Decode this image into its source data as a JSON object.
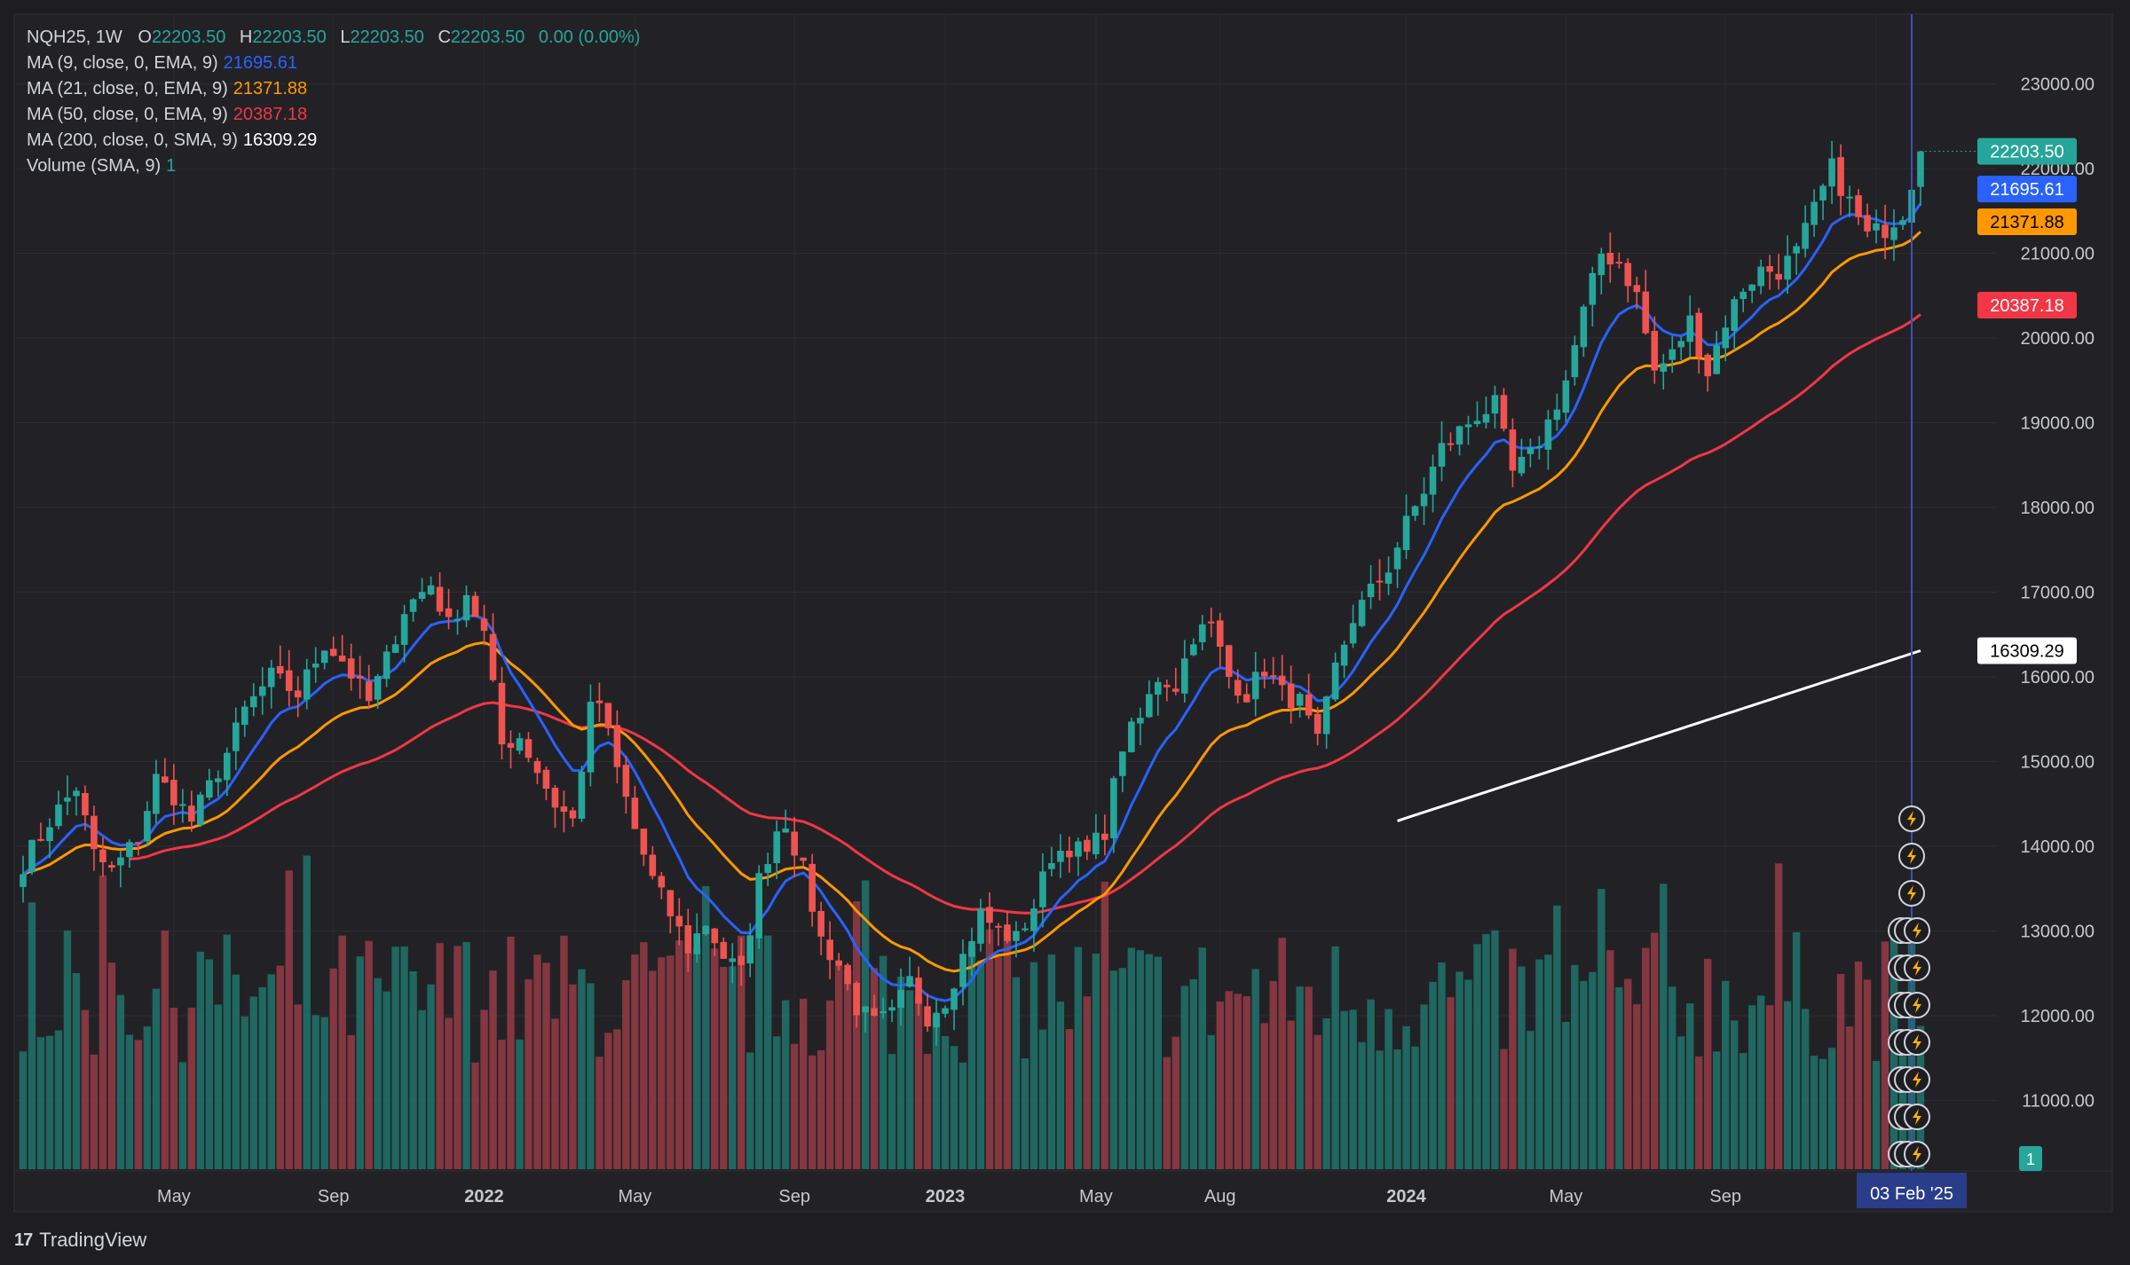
{
  "legend": {
    "symbol": "NQH25, 1W",
    "o_label": "O",
    "o": "22203.50",
    "h_label": "H",
    "h": "22203.50",
    "l_label": "L",
    "l": "22203.50",
    "c_label": "C",
    "c": "22203.50",
    "change": "0.00 (0.00%)",
    "ma9_label": "MA (9, close, 0, EMA, 9)",
    "ma9": "21695.61",
    "ma21_label": "MA (21, close, 0, EMA, 9)",
    "ma21": "21371.88",
    "ma50_label": "MA (50, close, 0, EMA, 9)",
    "ma50": "20387.18",
    "ma200_label": "MA (200, close, 0, SMA, 9)",
    "ma200": "16309.29",
    "volume_label": "Volume (SMA, 9)",
    "volume": "1"
  },
  "brand": {
    "name": "TradingView"
  },
  "colors": {
    "background": "#1e1e22",
    "up": "#26a69a",
    "down": "#ef5350",
    "ma9": "#2962ff",
    "ma21": "#ff9800",
    "ma50": "#f23645",
    "ma200": "#ffffff",
    "crosshair": "#3f51b5"
  },
  "chart_data": {
    "type": "candlestick",
    "interval": "1W",
    "y_ticks": [
      11000,
      12000,
      13000,
      14000,
      15000,
      16000,
      17000,
      18000,
      19000,
      20000,
      21000,
      22000,
      23000
    ],
    "y_tick_labels": [
      "11000.00",
      "12000.00",
      "13000.00",
      "14000.00",
      "15000.00",
      "16000.00",
      "17000.00",
      "18000.00",
      "19000.00",
      "20000.00",
      "21000.00",
      "22000.00",
      "23000.00"
    ],
    "ylim": [
      10200,
      23800
    ],
    "x_ticks": [
      {
        "label": "May",
        "bar": 17
      },
      {
        "label": "Sep",
        "bar": 35
      },
      {
        "label": "2022",
        "bar": 52
      },
      {
        "label": "May",
        "bar": 69
      },
      {
        "label": "Sep",
        "bar": 87
      },
      {
        "label": "2023",
        "bar": 104
      },
      {
        "label": "May",
        "bar": 121
      },
      {
        "label": "Aug",
        "bar": 135
      },
      {
        "label": "2024",
        "bar": 156
      },
      {
        "label": "May",
        "bar": 174
      },
      {
        "label": "Sep",
        "bar": 192
      },
      {
        "label": "",
        "bar": 209
      }
    ],
    "crosshair_label": "03 Feb '25",
    "last_bar_index": 214,
    "price_labels": [
      {
        "value": 22203.5,
        "text": "22203.50",
        "series": "price"
      },
      {
        "value": 21695.61,
        "text": "21695.61",
        "series": "ma9"
      },
      {
        "value": 21371.88,
        "text": "21371.88",
        "series": "ma21"
      },
      {
        "value": 20387.18,
        "text": "20387.18",
        "series": "ma50"
      },
      {
        "value": 16309.29,
        "text": "16309.29",
        "series": "ma200"
      }
    ],
    "volume_label": "1",
    "event_markers": 10,
    "close_anchors": [
      [
        0,
        13800
      ],
      [
        3,
        14300
      ],
      [
        6,
        14700
      ],
      [
        8,
        13900
      ],
      [
        10,
        13700
      ],
      [
        13,
        14100
      ],
      [
        15,
        14800
      ],
      [
        17,
        14600
      ],
      [
        19,
        14300
      ],
      [
        23,
        15100
      ],
      [
        25,
        15600
      ],
      [
        28,
        16000
      ],
      [
        31,
        15800
      ],
      [
        34,
        16400
      ],
      [
        36,
        16200
      ],
      [
        39,
        15700
      ],
      [
        41,
        16200
      ],
      [
        43,
        16800
      ],
      [
        46,
        17100
      ],
      [
        48,
        16600
      ],
      [
        50,
        17000
      ],
      [
        52,
        16500
      ],
      [
        54,
        15200
      ],
      [
        56,
        15300
      ],
      [
        58,
        14900
      ],
      [
        60,
        14500
      ],
      [
        62,
        14300
      ],
      [
        64,
        15600
      ],
      [
        65,
        15700
      ],
      [
        67,
        14900
      ],
      [
        69,
        14200
      ],
      [
        71,
        13600
      ],
      [
        73,
        13200
      ],
      [
        75,
        12800
      ],
      [
        77,
        13100
      ],
      [
        79,
        12700
      ],
      [
        81,
        12500
      ],
      [
        83,
        13600
      ],
      [
        85,
        14200
      ],
      [
        86,
        14300
      ],
      [
        88,
        13700
      ],
      [
        90,
        12900
      ],
      [
        92,
        12600
      ],
      [
        94,
        12100
      ],
      [
        96,
        11900
      ],
      [
        98,
        12000
      ],
      [
        100,
        12400
      ],
      [
        102,
        12000
      ],
      [
        104,
        12200
      ],
      [
        106,
        12700
      ],
      [
        108,
        13200
      ],
      [
        110,
        13000
      ],
      [
        112,
        12900
      ],
      [
        114,
        13300
      ],
      [
        116,
        13900
      ],
      [
        118,
        14000
      ],
      [
        120,
        13900
      ],
      [
        122,
        14200
      ],
      [
        124,
        15200
      ],
      [
        126,
        15500
      ],
      [
        128,
        16000
      ],
      [
        130,
        15900
      ],
      [
        132,
        16500
      ],
      [
        134,
        16600
      ],
      [
        136,
        16000
      ],
      [
        138,
        15800
      ],
      [
        140,
        16100
      ],
      [
        142,
        15800
      ],
      [
        144,
        15700
      ],
      [
        146,
        15200
      ],
      [
        148,
        16100
      ],
      [
        150,
        16700
      ],
      [
        152,
        17000
      ],
      [
        154,
        17300
      ],
      [
        156,
        17800
      ],
      [
        158,
        18200
      ],
      [
        160,
        18700
      ],
      [
        162,
        18900
      ],
      [
        164,
        19100
      ],
      [
        166,
        19200
      ],
      [
        168,
        18400
      ],
      [
        170,
        18600
      ],
      [
        172,
        19000
      ],
      [
        174,
        19500
      ],
      [
        176,
        20300
      ],
      [
        178,
        21000
      ],
      [
        180,
        20900
      ],
      [
        182,
        20500
      ],
      [
        184,
        19600
      ],
      [
        186,
        19800
      ],
      [
        188,
        20200
      ],
      [
        190,
        19600
      ],
      [
        192,
        20200
      ],
      [
        194,
        20600
      ],
      [
        196,
        20800
      ],
      [
        198,
        20800
      ],
      [
        200,
        21000
      ],
      [
        202,
        21500
      ],
      [
        204,
        22000
      ],
      [
        206,
        21600
      ],
      [
        208,
        21200
      ],
      [
        210,
        21300
      ],
      [
        212,
        21500
      ],
      [
        214,
        22203.5
      ]
    ],
    "ma200_start_bar": 155
  }
}
